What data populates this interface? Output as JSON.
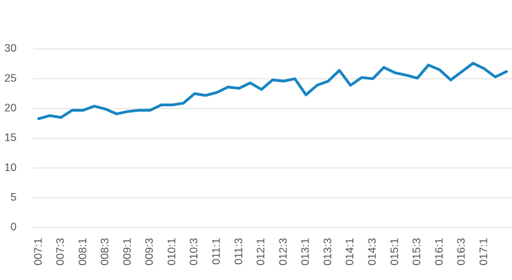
{
  "chart_data": {
    "type": "line",
    "categories": [
      "007:1",
      null,
      "007:3",
      null,
      "008:1",
      null,
      "008:3",
      null,
      "009:1",
      null,
      "009:3",
      null,
      "010:1",
      null,
      "010:3",
      null,
      "011:1",
      null,
      "011:3",
      null,
      "012:1",
      null,
      "012:3",
      null,
      "013:1",
      null,
      "013:3",
      null,
      "014:1",
      null,
      "014:3",
      null,
      "015:1",
      null,
      "015:3",
      null,
      "016:1",
      null,
      "016:3",
      null,
      "017:1",
      null,
      null
    ],
    "values": [
      18.3,
      18.8,
      18.5,
      19.7,
      19.7,
      20.4,
      19.9,
      19.1,
      19.5,
      19.7,
      19.7,
      20.6,
      20.6,
      20.9,
      22.5,
      22.2,
      22.7,
      23.6,
      23.4,
      24.3,
      23.2,
      24.8,
      24.6,
      25.0,
      22.3,
      23.9,
      24.6,
      26.4,
      23.9,
      25.2,
      25.0,
      26.9,
      26.0,
      25.6,
      25.1,
      27.3,
      26.5,
      24.8,
      26.2,
      27.6,
      26.7,
      25.3,
      26.2
    ],
    "color": "#1a86c2",
    "ylim": [
      0,
      30
    ],
    "yticks": [
      0,
      5,
      10,
      15,
      20,
      25,
      30
    ],
    "grid": true
  }
}
